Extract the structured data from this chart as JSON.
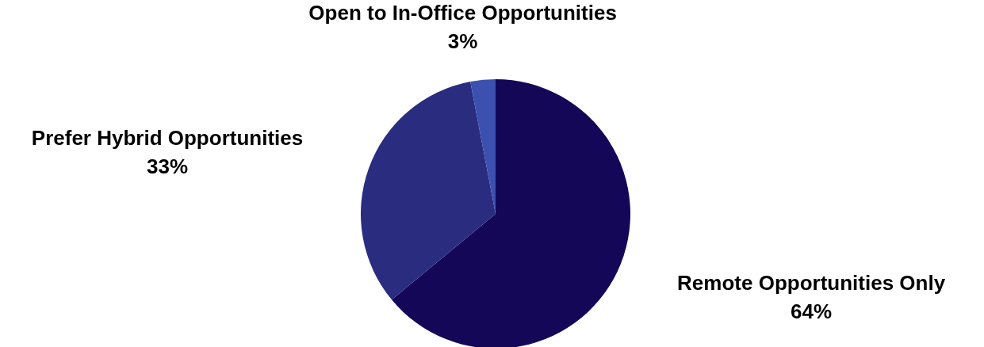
{
  "chart_data": {
    "type": "pie",
    "categories": [
      "Remote Opportunities Only",
      "Prefer Hybrid Opportunities",
      "Open to In-Office Opportunities"
    ],
    "values": [
      64,
      33,
      3
    ],
    "value_labels": [
      "64%",
      "33%",
      "3%"
    ],
    "colors": [
      "#140757",
      "#2a2c80",
      "#3c50b0"
    ]
  }
}
